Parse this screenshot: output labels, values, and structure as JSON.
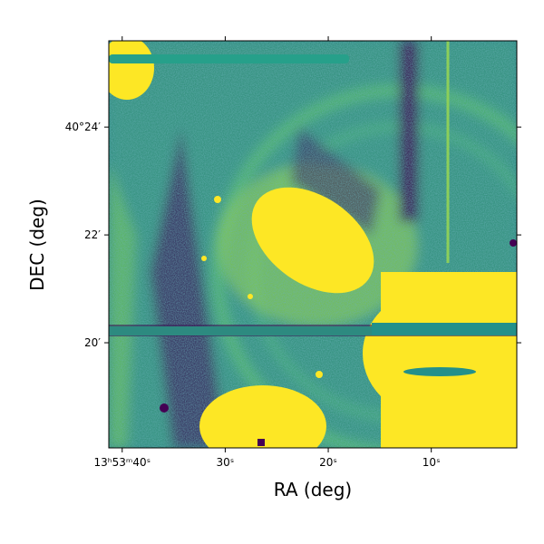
{
  "chart_data": {
    "type": "image",
    "xlabel": "RA (deg)",
    "ylabel": "DEC (deg)",
    "xlim": [
      41.3,
      1.7
    ],
    "ylim": [
      18.05,
      25.6
    ],
    "xticks": [
      {
        "value": 40,
        "label": "13ʰ53ᵐ40ˢ"
      },
      {
        "value": 30,
        "label": "30ˢ"
      },
      {
        "value": 20,
        "label": "20ˢ"
      },
      {
        "value": 10,
        "label": "10ˢ"
      }
    ],
    "yticks": [
      {
        "value": 24,
        "label": "40°24′"
      },
      {
        "value": 22,
        "label": "22′"
      },
      {
        "value": 20,
        "label": "20′"
      }
    ]
  }
}
